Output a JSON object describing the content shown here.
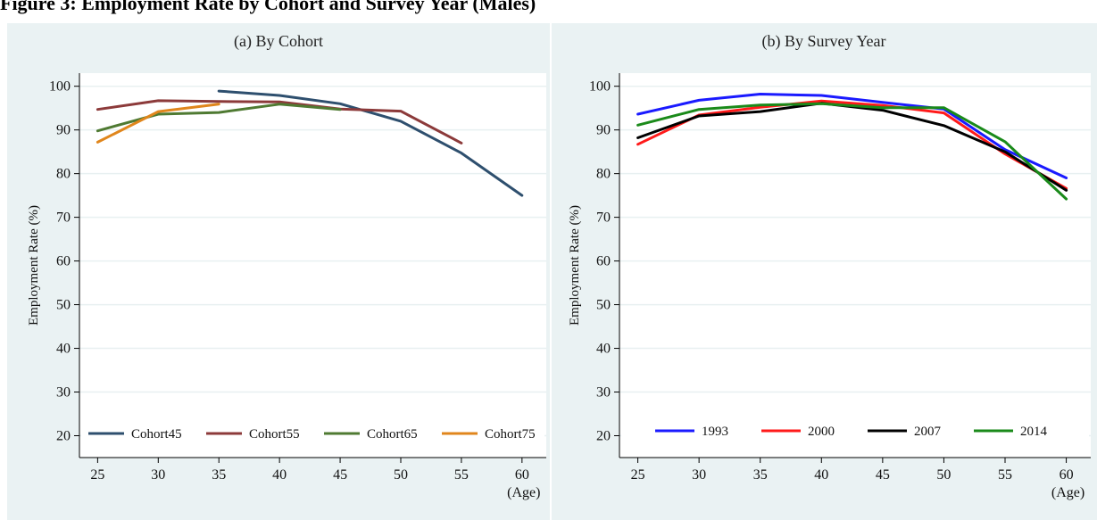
{
  "figure_title": "Figure 3: Employment Rate by Cohort and Survey Year (Males)",
  "chart_data": [
    {
      "type": "line",
      "title": "(a) By Cohort",
      "xlabel": "(Age)",
      "ylabel": "Employment Rate (%)",
      "xlim": [
        23.5,
        62
      ],
      "ylim": [
        15,
        103
      ],
      "xticks": [
        25,
        30,
        35,
        40,
        45,
        50,
        55,
        60
      ],
      "yticks": [
        20,
        30,
        40,
        50,
        60,
        70,
        80,
        90,
        100
      ],
      "grid": true,
      "legend_position": "bottom",
      "series": [
        {
          "name": "Cohort45",
          "color": "#2e4f6e",
          "x": [
            35,
            40,
            45,
            50,
            55,
            60
          ],
          "y": [
            98.9,
            97.9,
            96.0,
            92.0,
            84.7,
            75.0
          ]
        },
        {
          "name": "Cohort55",
          "color": "#8c3a3a",
          "x": [
            25,
            30,
            35,
            40,
            45,
            50,
            55
          ],
          "y": [
            94.7,
            96.7,
            96.5,
            96.4,
            94.8,
            94.3,
            87.0
          ]
        },
        {
          "name": "Cohort65",
          "color": "#4f7a32",
          "x": [
            25,
            30,
            35,
            40,
            45
          ],
          "y": [
            89.8,
            93.6,
            94.0,
            95.9,
            94.7
          ]
        },
        {
          "name": "Cohort75",
          "color": "#e0861c",
          "x": [
            25,
            30,
            35
          ],
          "y": [
            87.2,
            94.2,
            95.9
          ]
        }
      ]
    },
    {
      "type": "line",
      "title": "(b) By Survey Year",
      "xlabel": "(Age)",
      "ylabel": "Employment Rate (%)",
      "xlim": [
        23.5,
        62
      ],
      "ylim": [
        15,
        103
      ],
      "xticks": [
        25,
        30,
        35,
        40,
        45,
        50,
        55,
        60
      ],
      "yticks": [
        20,
        30,
        40,
        50,
        60,
        70,
        80,
        90,
        100
      ],
      "grid": true,
      "legend_position": "bottom",
      "series": [
        {
          "name": "1993",
          "color": "#1a1aff",
          "x": [
            25,
            30,
            35,
            40,
            45,
            50,
            55,
            60
          ],
          "y": [
            93.6,
            96.8,
            98.2,
            97.9,
            96.3,
            94.8,
            85.5,
            79.0
          ]
        },
        {
          "name": "2000",
          "color": "#ff1a1a",
          "x": [
            25,
            30,
            35,
            40,
            45,
            50,
            55,
            60
          ],
          "y": [
            86.7,
            93.4,
            95.2,
            96.6,
            95.6,
            93.9,
            84.5,
            76.6
          ]
        },
        {
          "name": "2007",
          "color": "#000000",
          "x": [
            25,
            30,
            35,
            40,
            45,
            50,
            55,
            60
          ],
          "y": [
            88.2,
            93.2,
            94.2,
            96.1,
            94.5,
            91.0,
            85.0,
            76.2
          ]
        },
        {
          "name": "2014",
          "color": "#1a8a1a",
          "x": [
            25,
            30,
            35,
            40,
            45,
            50,
            55,
            60
          ],
          "y": [
            91.1,
            94.7,
            95.7,
            96.0,
            95.1,
            95.1,
            87.3,
            74.2
          ]
        }
      ]
    }
  ]
}
